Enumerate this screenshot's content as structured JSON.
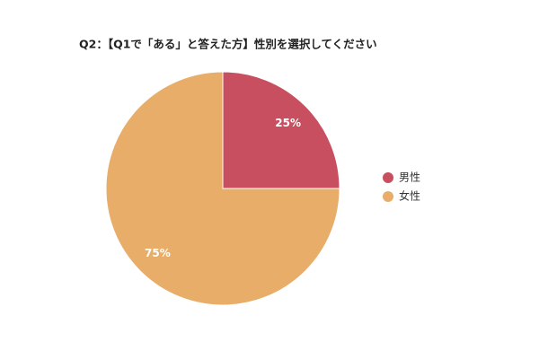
{
  "chart_data": {
    "type": "pie",
    "title": "Q2：【Q1で「ある」と答えた方】性別を選択してください",
    "categories": [
      "男性",
      "女性"
    ],
    "values": [
      25,
      75
    ],
    "value_labels": [
      "25%",
      "75%"
    ],
    "colors": [
      "#c84f5f",
      "#e8ad69"
    ],
    "legend": "right"
  }
}
